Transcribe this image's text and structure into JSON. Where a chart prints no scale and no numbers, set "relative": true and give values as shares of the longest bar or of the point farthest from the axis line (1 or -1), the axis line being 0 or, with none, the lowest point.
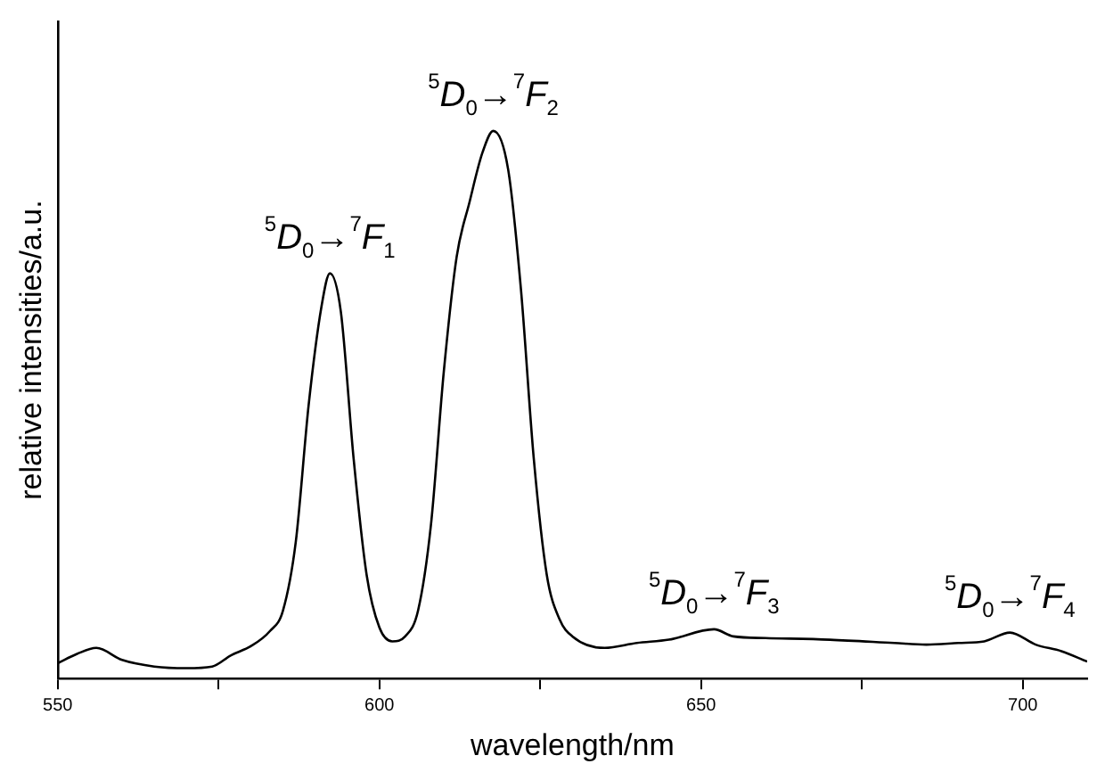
{
  "chart_data": {
    "type": "line",
    "xlabel": "wavelength/nm",
    "ylabel": "relative intensities/a.u.",
    "relative": true,
    "xlim": [
      550,
      710
    ],
    "xticks": [
      550,
      {
        "value": 575,
        "label": null
      },
      600,
      {
        "value": 625,
        "label": null
      },
      650,
      {
        "value": 675,
        "label": null
      },
      700
    ],
    "grid": false,
    "legend": false,
    "marker": "none",
    "line_style": "solid",
    "series": [
      {
        "color": "#000000",
        "x": [
          550,
          553,
          556,
          560,
          565,
          570,
          574,
          577,
          580,
          583,
          585,
          587,
          589,
          591,
          592.3,
          594,
          596,
          598,
          600,
          602,
          604,
          606,
          608,
          610,
          612,
          614,
          616,
          617.7,
          620,
          622,
          624,
          626,
          628,
          630,
          635,
          640,
          645,
          652,
          655,
          660,
          670,
          680,
          685,
          690,
          694,
          698,
          702,
          706,
          710
        ],
        "values": [
          0.028,
          0.045,
          0.056,
          0.034,
          0.022,
          0.019,
          0.022,
          0.043,
          0.059,
          0.087,
          0.124,
          0.25,
          0.5,
          0.68,
          0.74,
          0.67,
          0.4,
          0.19,
          0.093,
          0.068,
          0.077,
          0.124,
          0.28,
          0.56,
          0.77,
          0.87,
          0.96,
          1,
          0.93,
          0.71,
          0.4,
          0.19,
          0.108,
          0.077,
          0.056,
          0.065,
          0.071,
          0.09,
          0.077,
          0.074,
          0.071,
          0.065,
          0.062,
          0.065,
          0.068,
          0.084,
          0.062,
          0.05,
          0.031
        ]
      }
    ],
    "annotations": [
      {
        "text": "$^{5}$D$_{0}$→$^{7}$F$_{1}$",
        "x": 592.3,
        "y": 0.74
      },
      {
        "text": "$^{5}$D$_{0}$→$^{7}$F$_{2}$",
        "x": 617.7,
        "y": 1
      },
      {
        "text": "$^{5}$D$_{0}$→$^{7}$F$_{3}$",
        "x": 652,
        "y": 0.09
      },
      {
        "text": "$^{5}$D$_{0}$→$^{7}$F$_{4}$",
        "x": 698,
        "y": 0.084
      }
    ]
  }
}
